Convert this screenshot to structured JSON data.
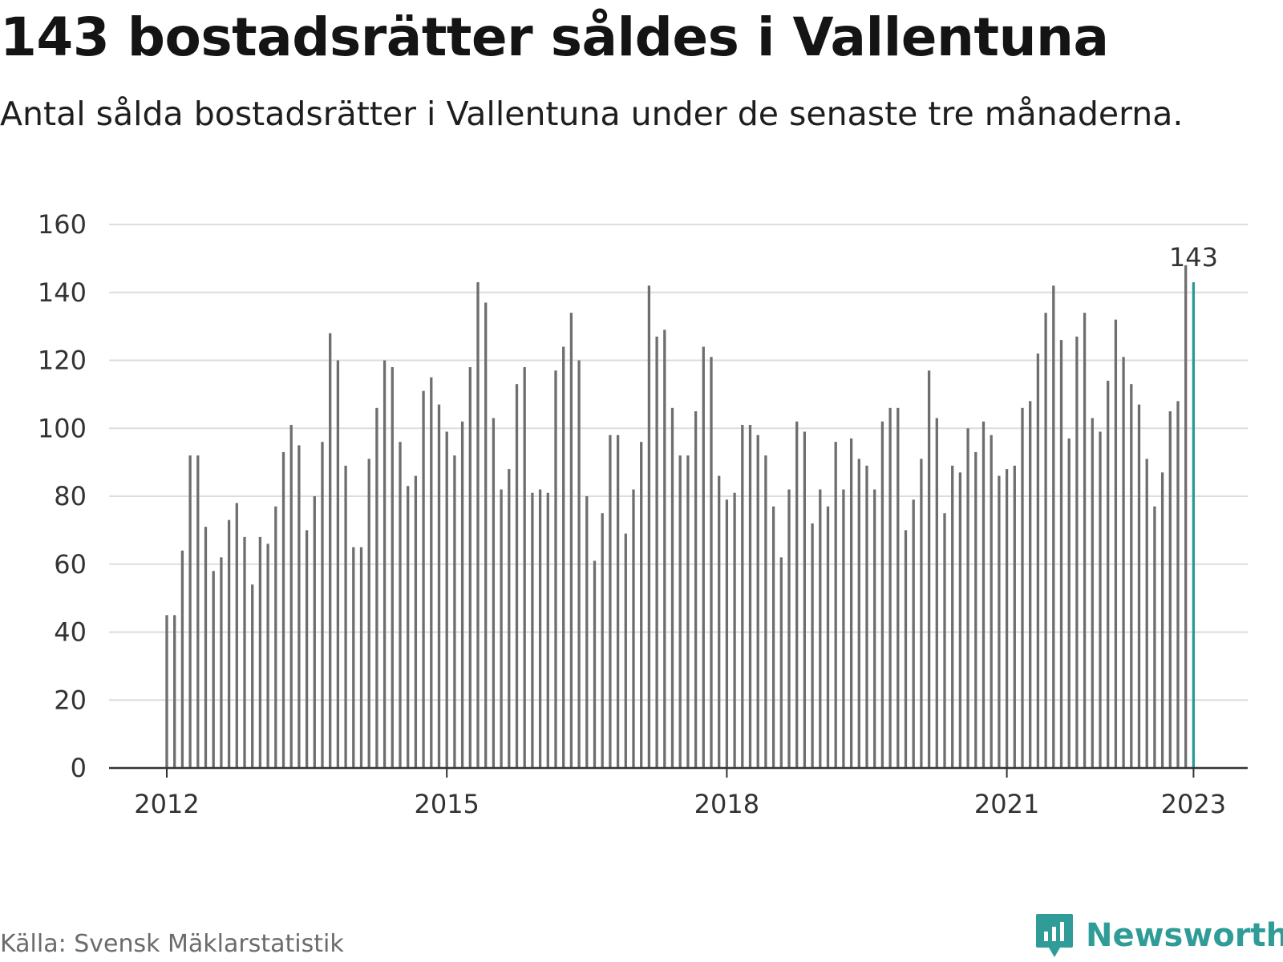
{
  "title": "143 bostadsrätter såldes i Vallentuna",
  "subtitle": "Antal sålda bostadsrätter i Vallentuna under de senaste tre månaderna.",
  "source": "Källa: Svensk Mäklarstatistik",
  "logo_text": "Newsworthy",
  "colors": {
    "bar": "#6e6e6e",
    "highlight": "#2b9a96",
    "grid": "#dddddd",
    "axis": "#333333",
    "logo": "#2f9c97"
  },
  "chart_data": {
    "type": "bar",
    "title": "143 bostadsrätter såldes i Vallentuna",
    "xlabel": "",
    "ylabel": "",
    "ylim": [
      0,
      160
    ],
    "yticks": [
      "0",
      "20",
      "40",
      "60",
      "80",
      "100",
      "120",
      "140",
      "160"
    ],
    "xticks": [
      "2012",
      "2015",
      "2018",
      "2021",
      "2023"
    ],
    "grid": true,
    "start": "2012-01",
    "frequency": "monthly",
    "values": [
      45,
      45,
      64,
      92,
      92,
      71,
      58,
      62,
      73,
      78,
      68,
      54,
      68,
      66,
      77,
      93,
      101,
      95,
      70,
      80,
      96,
      128,
      120,
      89,
      65,
      65,
      91,
      106,
      120,
      118,
      96,
      83,
      86,
      111,
      115,
      107,
      99,
      92,
      102,
      118,
      143,
      137,
      103,
      82,
      88,
      113,
      118,
      81,
      82,
      81,
      117,
      124,
      134,
      120,
      80,
      61,
      75,
      98,
      98,
      69,
      82,
      96,
      142,
      127,
      129,
      106,
      92,
      92,
      105,
      124,
      121,
      86,
      79,
      81,
      101,
      101,
      98,
      92,
      77,
      62,
      82,
      102,
      99,
      72,
      82,
      77,
      96,
      82,
      97,
      91,
      89,
      82,
      102,
      106,
      106,
      70,
      79,
      91,
      117,
      103,
      75,
      89,
      87,
      100,
      93,
      102,
      98,
      86,
      88,
      89,
      106,
      108,
      122,
      134,
      142,
      126,
      97,
      127,
      134,
      103,
      99,
      114,
      132,
      121,
      113,
      107,
      91,
      77,
      87,
      105,
      108,
      148,
      143
    ],
    "highlight": {
      "label": "143",
      "value": 143,
      "index": 132
    }
  }
}
